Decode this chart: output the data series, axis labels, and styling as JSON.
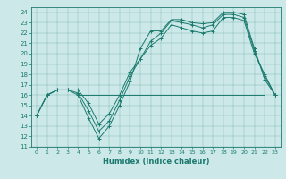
{
  "xlabel": "Humidex (Indice chaleur)",
  "ylabel": "",
  "bg_color": "#cce8e8",
  "line_color": "#1a7a6e",
  "xlim": [
    -0.5,
    23.5
  ],
  "ylim": [
    11,
    24.5
  ],
  "xticks": [
    0,
    1,
    2,
    3,
    4,
    5,
    6,
    7,
    8,
    9,
    10,
    11,
    12,
    13,
    14,
    15,
    16,
    17,
    18,
    19,
    20,
    21,
    22,
    23
  ],
  "yticks": [
    11,
    12,
    13,
    14,
    15,
    16,
    17,
    18,
    19,
    20,
    21,
    22,
    23,
    24
  ],
  "series": [
    {
      "x": [
        0,
        1,
        2,
        3,
        4,
        5,
        6,
        7,
        8,
        9,
        10,
        11,
        12,
        13,
        14,
        15,
        16,
        17,
        18,
        19,
        20,
        21,
        22,
        23
      ],
      "y": [
        14,
        16,
        16.5,
        16.5,
        16,
        13.8,
        11.8,
        13,
        15,
        17.3,
        20.5,
        22.2,
        22.2,
        23.3,
        23.3,
        23.0,
        22.9,
        23.0,
        24.0,
        24.0,
        23.8,
        20.5,
        17.5,
        16.0
      ],
      "marker": "+"
    },
    {
      "x": [
        0,
        1,
        2,
        3,
        4,
        5,
        6,
        7,
        8,
        9,
        10,
        11,
        12,
        13,
        14,
        15,
        16,
        17,
        18,
        19,
        20,
        21,
        22,
        23
      ],
      "y": [
        14,
        16,
        16.5,
        16.5,
        16.2,
        14.5,
        12.5,
        13.5,
        15.5,
        17.8,
        19.5,
        21.2,
        22.0,
        23.2,
        23.0,
        22.8,
        22.5,
        22.8,
        23.8,
        23.8,
        23.5,
        20.3,
        17.8,
        16.0
      ],
      "marker": "+"
    },
    {
      "x": [
        0,
        1,
        2,
        3,
        4,
        5,
        6,
        7,
        8,
        9,
        10,
        11,
        12,
        13,
        14,
        15,
        16,
        17,
        18,
        19,
        20,
        21,
        22,
        23
      ],
      "y": [
        14,
        16,
        16.5,
        16.5,
        16.5,
        15.2,
        13.2,
        14.2,
        16.0,
        18.2,
        19.5,
        20.8,
        21.5,
        22.8,
        22.5,
        22.2,
        22.0,
        22.2,
        23.5,
        23.5,
        23.2,
        20.0,
        18.0,
        16.0
      ],
      "marker": "+"
    },
    {
      "x": [
        4,
        5,
        6,
        7,
        8,
        9,
        10,
        11,
        12,
        13,
        14,
        15,
        16,
        17,
        18,
        19,
        20,
        21,
        22
      ],
      "y": [
        16,
        16,
        16,
        16,
        16,
        16,
        16,
        16,
        16,
        16,
        16,
        16,
        16,
        16,
        16,
        16,
        16,
        16,
        16
      ],
      "marker": null
    }
  ]
}
